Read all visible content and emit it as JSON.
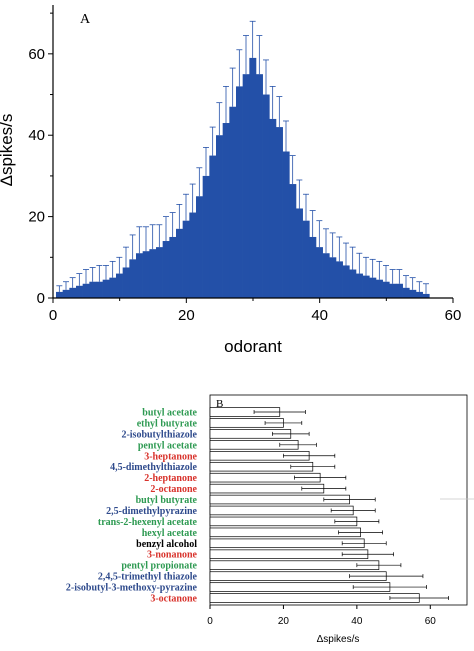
{
  "colors": {
    "bar_a": "#2350a8",
    "err_a": "#2350a8",
    "green": "#2e9a52",
    "blue": "#2e4a8c",
    "red": "#d8322b",
    "black": "#000000"
  },
  "chart_data": [
    {
      "type": "bar",
      "panel": "A",
      "xlabel": "odorant",
      "ylabel": "Δspikes/s",
      "xlim": [
        0,
        60
      ],
      "ylim": [
        0,
        72
      ],
      "xticks": [
        "0",
        "20",
        "40",
        "60"
      ],
      "yticks": [
        "0",
        "20",
        "40",
        "60"
      ],
      "x": [
        0,
        1,
        2,
        3,
        4,
        5,
        6,
        7,
        8,
        9,
        10,
        11,
        12,
        13,
        14,
        15,
        16,
        17,
        18,
        19,
        20,
        21,
        22,
        23,
        24,
        25,
        26,
        27,
        28,
        29,
        30,
        31,
        32,
        33,
        34,
        35,
        36,
        37,
        38,
        39,
        40,
        41,
        42,
        43,
        44,
        45,
        46,
        47,
        48,
        49,
        50,
        51,
        52,
        53,
        54,
        55
      ],
      "values": [
        1.5,
        2,
        2.5,
        3,
        3.5,
        4,
        4,
        4.5,
        5,
        6,
        7.5,
        9.5,
        11,
        11.5,
        12,
        12.5,
        14,
        15,
        17,
        19,
        21,
        25,
        30,
        35,
        40,
        43,
        47,
        52,
        55,
        59,
        55,
        50,
        44,
        42,
        36,
        28,
        22,
        19,
        15,
        12.5,
        11,
        10,
        9,
        8,
        7,
        6,
        5.5,
        5,
        4.5,
        4,
        3.5,
        3.5,
        2.5,
        2,
        1.5,
        1
      ],
      "errors": [
        1.5,
        2,
        2.5,
        3,
        3.5,
        3.5,
        4,
        3.5,
        4,
        4,
        5,
        6,
        6.5,
        6,
        6,
        5.5,
        6,
        6,
        6,
        6.5,
        7,
        7,
        7,
        7,
        8,
        9,
        9.5,
        9,
        9.5,
        9,
        9.5,
        8.5,
        8,
        7.5,
        7.5,
        7,
        7,
        6.5,
        6.5,
        6.5,
        6,
        6,
        6,
        5.5,
        5.5,
        5,
        4.5,
        4.5,
        4.5,
        4,
        3.5,
        3.5,
        3,
        3,
        2.5,
        2.5
      ]
    },
    {
      "type": "bar",
      "orientation": "horizontal",
      "panel": "B",
      "xlabel": "Δspikes/s",
      "xlim": [
        0,
        70
      ],
      "xticks": [
        "0",
        "20",
        "40",
        "60"
      ],
      "categories": [
        "butyl acetate",
        "ethyl butyrate",
        "2-isobutylthiazole",
        "pentyl acetate",
        "3-heptanone",
        "4,5-dimethylthiazole",
        "2-heptanone",
        "2-octanone",
        "butyl butyrate",
        "2,5-dimethylpyrazine",
        "trans-2-hexenyl acetate",
        "hexyl acetate",
        "benzyl alcohol",
        "3-nonanone",
        "pentyl propionate",
        "2,4,5-trimethyl thiazole",
        "2-isobutyl-3-methoxy-pyrazine",
        "3-octanone"
      ],
      "label_colors": [
        "green",
        "green",
        "blue",
        "green",
        "red",
        "blue",
        "red",
        "red",
        "green",
        "blue",
        "green",
        "green",
        "black",
        "red",
        "green",
        "blue",
        "blue",
        "red"
      ],
      "values": [
        19,
        20,
        22,
        24,
        27,
        28,
        30,
        31,
        38,
        39,
        40,
        41,
        42,
        43,
        46,
        48,
        49,
        57
      ],
      "errors": [
        7,
        5,
        5,
        5,
        7,
        6,
        7,
        6,
        7,
        6,
        6,
        6,
        6,
        7,
        6,
        10,
        10,
        8
      ]
    }
  ]
}
